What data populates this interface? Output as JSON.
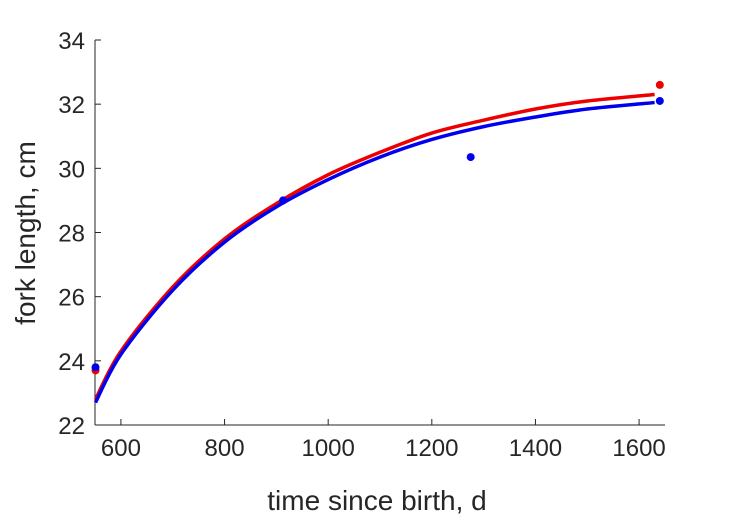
{
  "chart_data": {
    "type": "scatter",
    "title": "",
    "xlabel": "time since birth, d",
    "ylabel": "fork length, cm",
    "xlim": [
      550,
      1650
    ],
    "ylim": [
      22,
      34
    ],
    "xticks": [
      600,
      800,
      1000,
      1200,
      1400,
      1600
    ],
    "yticks": [
      22,
      24,
      26,
      28,
      30,
      32,
      34
    ],
    "grid": false,
    "legend": "none",
    "series": [
      {
        "color": "#ee0000",
        "points": {
          "x": [
            551,
            1640
          ],
          "y": [
            23.7,
            32.6
          ]
        },
        "curve": {
          "x": [
            551,
            600,
            700,
            800,
            900,
            1000,
            1100,
            1200,
            1300,
            1400,
            1500,
            1630
          ],
          "y": [
            22.8,
            24.3,
            26.3,
            27.8,
            28.9,
            29.8,
            30.5,
            31.1,
            31.5,
            31.85,
            32.1,
            32.3
          ]
        }
      },
      {
        "color": "#0000ee",
        "points": {
          "x": [
            551,
            913,
            1275,
            1640
          ],
          "y": [
            23.8,
            29.0,
            30.35,
            32.1
          ]
        },
        "curve": {
          "x": [
            551,
            600,
            700,
            800,
            900,
            1000,
            1100,
            1200,
            1300,
            1400,
            1500,
            1630
          ],
          "y": [
            22.7,
            24.2,
            26.2,
            27.7,
            28.8,
            29.65,
            30.35,
            30.9,
            31.3,
            31.6,
            31.85,
            32.05
          ]
        }
      }
    ]
  }
}
